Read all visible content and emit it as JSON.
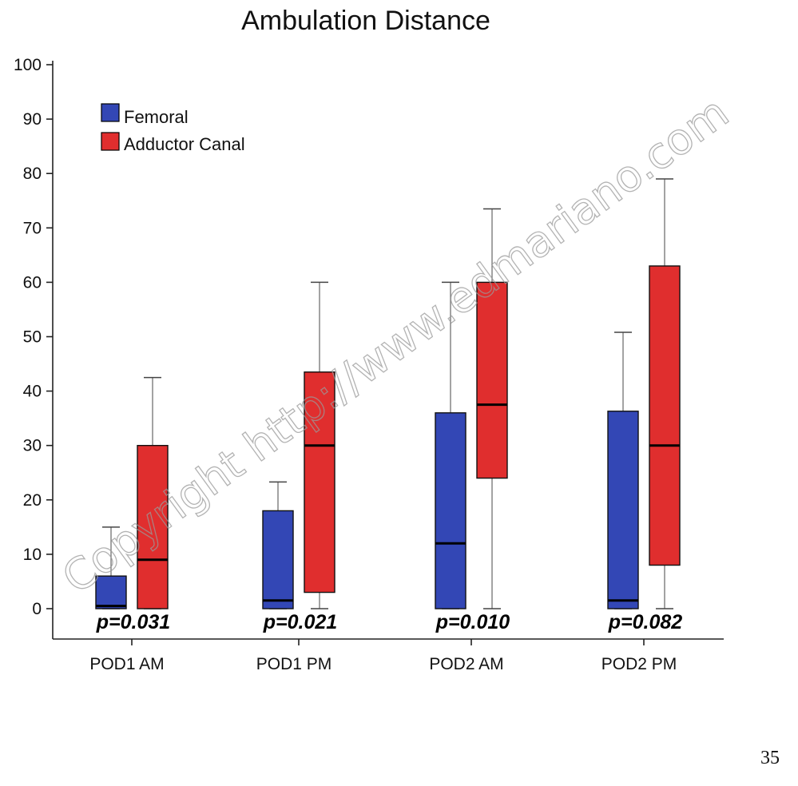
{
  "chart_data": {
    "type": "boxplot",
    "title": "Ambulation Distance",
    "xlabel": "",
    "ylabel": "",
    "ylim": [
      -5,
      100
    ],
    "yticks": [
      0,
      10,
      20,
      30,
      40,
      50,
      60,
      70,
      80,
      90,
      100
    ],
    "categories": [
      "POD1 AM",
      "POD1 PM",
      "POD2 AM",
      "POD2 PM"
    ],
    "legend_position": "top-left",
    "series": [
      {
        "name": "Femoral",
        "color": "#3347b5",
        "boxes": [
          {
            "min": 0,
            "q1": 0,
            "median": 0.5,
            "q3": 6,
            "max": 15
          },
          {
            "min": 0,
            "q1": 0,
            "median": 1.5,
            "q3": 18,
            "max": 23.3
          },
          {
            "min": 0,
            "q1": 0,
            "median": 12,
            "q3": 36,
            "max": 60
          },
          {
            "min": 0,
            "q1": 0,
            "median": 1.5,
            "q3": 36.3,
            "max": 50.8
          }
        ]
      },
      {
        "name": "Adductor Canal",
        "color": "#e02e2e",
        "boxes": [
          {
            "min": 0,
            "q1": 0,
            "median": 9,
            "q3": 30,
            "max": 42.5
          },
          {
            "min": 0,
            "q1": 3,
            "median": 30,
            "q3": 43.5,
            "max": 60
          },
          {
            "min": 0,
            "q1": 24,
            "median": 37.5,
            "q3": 60,
            "max": 73.5
          },
          {
            "min": 0,
            "q1": 8,
            "median": 30,
            "q3": 63,
            "max": 79
          }
        ]
      }
    ],
    "annotations": [
      "p=0.031",
      "p=0.021",
      "p=0.010",
      "p=0.082"
    ]
  },
  "watermark": "Copyright http://www.edmariano.com",
  "page_number": "35"
}
